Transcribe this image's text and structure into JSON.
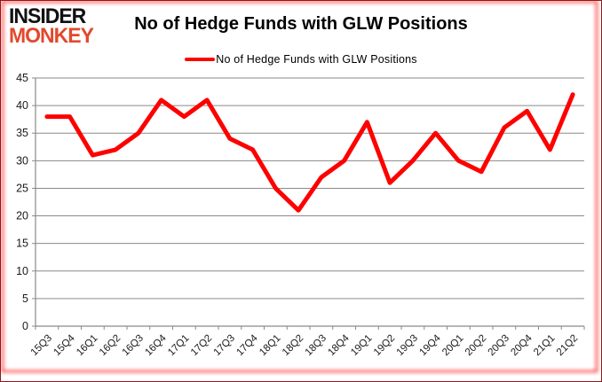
{
  "header": {
    "logo_line1": "INSIDER",
    "logo_line2": "MONKEY",
    "title": "No of Hedge Funds with GLW Positions"
  },
  "legend": {
    "label": "No of Hedge Funds with GLW Positions"
  },
  "colors": {
    "series_red": "#ff0000",
    "logo_red": "#e2492d",
    "gridline_gray": "#8a8a8a",
    "frame_red": "#ff1414"
  },
  "chart_data": {
    "type": "line",
    "title": "No of Hedge Funds with GLW Positions",
    "categories": [
      "15Q3",
      "15Q4",
      "16Q1",
      "16Q2",
      "16Q3",
      "16Q4",
      "17Q1",
      "17Q2",
      "17Q3",
      "17Q4",
      "18Q1",
      "18Q2",
      "18Q3",
      "18Q4",
      "19Q1",
      "19Q2",
      "19Q3",
      "19Q4",
      "20Q1",
      "20Q2",
      "20Q3",
      "20Q4",
      "21Q1",
      "21Q2"
    ],
    "series": [
      {
        "name": "No of Hedge Funds with GLW Positions",
        "color": "#ff0000",
        "values": [
          38,
          38,
          31,
          32,
          35,
          41,
          38,
          41,
          34,
          32,
          25,
          21,
          27,
          30,
          37,
          26,
          30,
          35,
          30,
          28,
          36,
          39,
          32,
          42
        ]
      }
    ],
    "xlabel": "",
    "ylabel": "",
    "ylim": [
      0,
      45
    ],
    "ytick_step": 5,
    "grid": true,
    "legend_position": "top"
  }
}
